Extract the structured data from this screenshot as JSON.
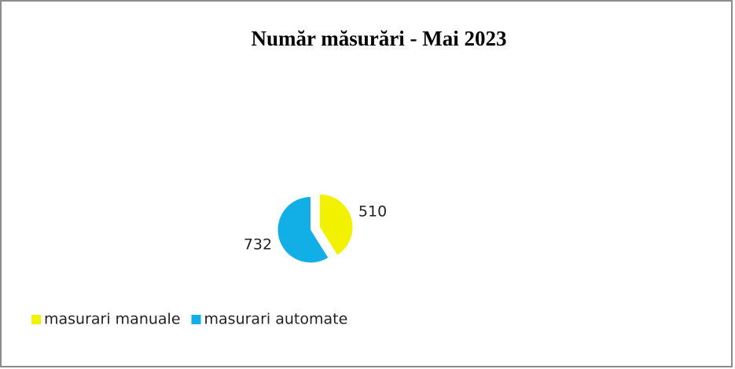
{
  "chart_data": {
    "type": "pie",
    "title": "Număr măsurări - Mai 2023",
    "categories": [
      "masurari manuale",
      "masurari automate"
    ],
    "values": [
      510,
      732
    ],
    "colors": [
      "#f2f200",
      "#12aee6"
    ],
    "legend": "bottom-left"
  }
}
